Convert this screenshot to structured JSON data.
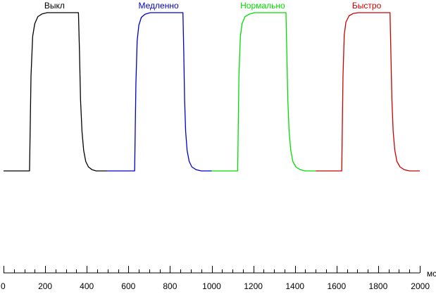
{
  "chart_data": {
    "type": "line",
    "title": "",
    "xlabel": "",
    "ylabel": "",
    "x_unit": "мс",
    "xlim": [
      0,
      2000
    ],
    "ylim": [
      0,
      1
    ],
    "x_ticks": [
      0,
      200,
      400,
      600,
      800,
      1000,
      1200,
      1400,
      1600,
      1800,
      2000
    ],
    "x_minor_step": 50,
    "grid": false,
    "legend": "none",
    "series": [
      {
        "name": "Выкл",
        "color": "#000000",
        "segment": [
          0,
          500
        ],
        "x": [
          0,
          125,
          132,
          140,
          150,
          165,
          185,
          210,
          240,
          280,
          360,
          365,
          370,
          377,
          385,
          395,
          408,
          425,
          445,
          470,
          500
        ],
        "y": [
          0,
          0,
          0.6,
          0.85,
          0.93,
          0.975,
          0.992,
          1.0,
          1.0,
          1.0,
          1.0,
          0.75,
          0.45,
          0.25,
          0.13,
          0.06,
          0.025,
          0.008,
          0,
          0,
          0
        ]
      },
      {
        "name": "Медленно",
        "color": "#0000cc",
        "segment": [
          500,
          1000
        ],
        "x": [
          500,
          630,
          636,
          642,
          650,
          662,
          680,
          705,
          740,
          800,
          862,
          866,
          870,
          875,
          882,
          892,
          905,
          925,
          950,
          975,
          1000
        ],
        "y": [
          0,
          0,
          0.55,
          0.82,
          0.92,
          0.97,
          0.99,
          1.0,
          1.0,
          1.0,
          1.0,
          0.75,
          0.45,
          0.25,
          0.13,
          0.06,
          0.025,
          0.008,
          0,
          0,
          0
        ]
      },
      {
        "name": "Нормально",
        "color": "#00dd00",
        "segment": [
          1000,
          1500
        ],
        "x": [
          1000,
          1125,
          1131,
          1138,
          1146,
          1160,
          1180,
          1205,
          1240,
          1300,
          1357,
          1361,
          1366,
          1372,
          1380,
          1390,
          1405,
          1425,
          1450,
          1475,
          1500
        ],
        "y": [
          0,
          0,
          0.6,
          0.85,
          0.93,
          0.975,
          0.99,
          1.0,
          1.0,
          1.0,
          1.0,
          0.75,
          0.45,
          0.25,
          0.13,
          0.06,
          0.025,
          0.008,
          0,
          0,
          0
        ]
      },
      {
        "name": "Быстро",
        "color": "#cc0000",
        "segment": [
          1500,
          2000
        ],
        "x": [
          1500,
          1625,
          1631,
          1637,
          1645,
          1660,
          1680,
          1705,
          1740,
          1800,
          1857,
          1861,
          1866,
          1872,
          1880,
          1890,
          1905,
          1925,
          1950,
          1975,
          2000
        ],
        "y": [
          0,
          0,
          0.6,
          0.86,
          0.94,
          0.98,
          0.995,
          1.0,
          1.0,
          1.0,
          1.0,
          0.75,
          0.45,
          0.25,
          0.13,
          0.06,
          0.025,
          0.008,
          0,
          0,
          0
        ]
      }
    ],
    "annotations": [
      {
        "text": "Выкл",
        "x": 245,
        "color": "#000000"
      },
      {
        "text": "Медленно",
        "x": 745,
        "color": "#0000cc"
      },
      {
        "text": "Нормально",
        "x": 1245,
        "color": "#00dd00"
      },
      {
        "text": "Быстро",
        "x": 1745,
        "color": "#cc0000"
      }
    ]
  }
}
